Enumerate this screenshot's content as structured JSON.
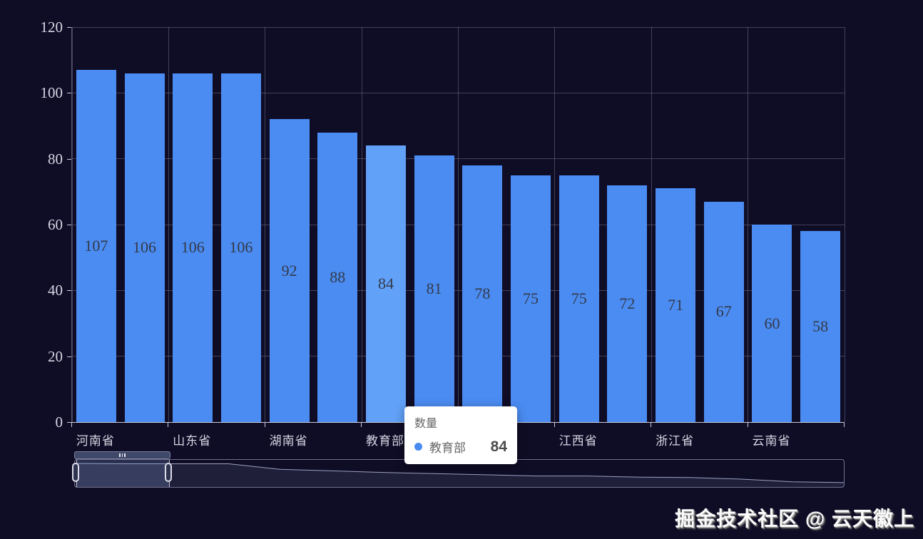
{
  "chart_data": {
    "type": "bar",
    "title": "",
    "series_name": "数量",
    "categories": [
      "河南省",
      "",
      "山东省",
      "",
      "湖南省",
      "",
      "教育部",
      "",
      "",
      "",
      "江西省",
      "",
      "浙江省",
      "",
      "云南省",
      ""
    ],
    "values": [
      107,
      106,
      106,
      106,
      92,
      88,
      84,
      81,
      78,
      75,
      75,
      72,
      71,
      67,
      60,
      58
    ],
    "highlighted_index": 6,
    "highlighted_category": "教育部",
    "highlighted_value": 84,
    "ylim": [
      0,
      120
    ],
    "yticks": [
      0,
      20,
      40,
      60,
      80,
      100,
      120
    ],
    "x_label_interval": 2,
    "grid": true,
    "legend_position": "none",
    "has_datazoom_slider": true
  },
  "tooltip": {
    "title": "数量",
    "item_label": "教育部",
    "item_value": "84"
  },
  "colors": {
    "background": "#0f0c26",
    "bar": "#4b8cf2",
    "bar_highlight": "#61a1f8",
    "bar_label": "#333a49",
    "grid_line": "rgba(165,165,190,0.35)",
    "axis_line": "#c9c9d6",
    "axis_text": "#d6d6e2",
    "tooltip_marker": "#4a8bf2",
    "shadow_line": "#9aa0bf",
    "shadow_fill": "rgba(160,170,205,0.12)"
  },
  "watermark": {
    "text": "掘金技术社区 @ 云天徽上"
  }
}
